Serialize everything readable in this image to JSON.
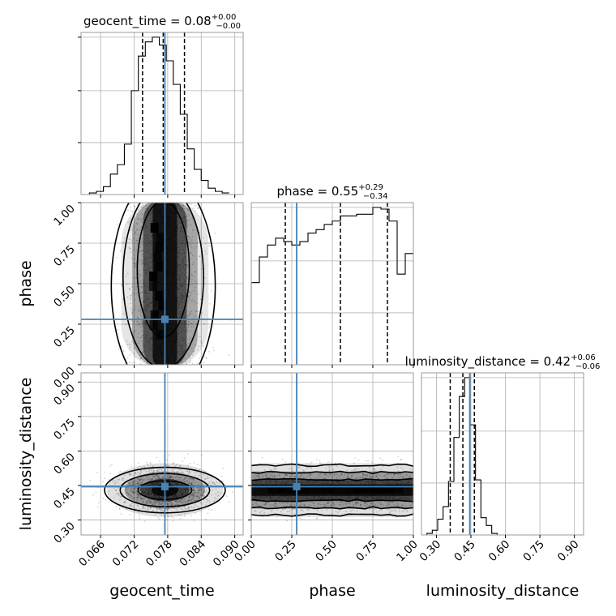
{
  "chart_data": {
    "type": "corner",
    "colors": {
      "truth": "#4682b4",
      "line": "#000000",
      "density": "#000000",
      "grid": "#b0b0b0"
    },
    "parameters": [
      {
        "name": "geocent_time",
        "label": "geocent_time",
        "range": [
          0.0625,
          0.0915
        ],
        "ticks": [
          0.066,
          0.072,
          0.078,
          0.084,
          0.09
        ],
        "tick_labels": [
          "0.066",
          "0.072",
          "0.078",
          "0.084",
          "0.090"
        ],
        "truth": 0.0775,
        "quantiles": [
          0.0735,
          0.0772,
          0.081
        ],
        "title": {
          "main": "geocent_time = 0.08",
          "sup": "+0.00",
          "sub": "−0.00"
        },
        "hist": {
          "edges_start": 0.064,
          "bin_width": 0.00125,
          "counts": [
            1,
            2,
            5,
            13,
            19,
            32,
            66,
            88,
            97,
            100,
            95,
            85,
            70,
            51,
            29,
            16,
            9,
            4,
            2,
            1
          ]
        }
      },
      {
        "name": "phase",
        "label": "phase",
        "range": [
          0.0,
          1.0
        ],
        "ticks": [
          0.0,
          0.25,
          0.5,
          0.75,
          1.0
        ],
        "tick_labels": [
          "0.00",
          "0.25",
          "0.50",
          "0.75",
          "1.00"
        ],
        "truth": 0.28,
        "quantiles": [
          0.21,
          0.55,
          0.84
        ],
        "title": {
          "main": "phase = 0.55",
          "sup": "+0.29",
          "sub": "−0.34"
        },
        "hist": {
          "edges_start": 0.0,
          "bin_width": 0.05,
          "counts": [
            48,
            63,
            70,
            74,
            72,
            70,
            72,
            77,
            79,
            82,
            84,
            87,
            87,
            88,
            88,
            92,
            91,
            84,
            53,
            65
          ]
        }
      },
      {
        "name": "luminosity_distance",
        "label": "luminosity_distance",
        "range": [
          0.235,
          0.94
        ],
        "ticks": [
          0.3,
          0.45,
          0.6,
          0.75,
          0.9
        ],
        "tick_labels": [
          "0.30",
          "0.45",
          "0.60",
          "0.75",
          "0.90"
        ],
        "truth": 0.445,
        "quantiles": [
          0.36,
          0.415,
          0.465
        ],
        "title": {
          "main": "luminosity_distance = 0.42",
          "sup": "+0.06",
          "sub": "−0.06"
        },
        "hist": {
          "edges_start": 0.235,
          "bin_width": 0.0235,
          "counts": [
            0,
            1,
            3,
            10,
            18,
            34,
            62,
            88,
            100,
            70,
            35,
            11,
            6,
            1,
            0,
            0,
            0,
            0,
            0,
            0
          ]
        }
      }
    ],
    "joint": [
      {
        "x": "geocent_time",
        "y": "phase",
        "shape": "vertical",
        "center": [
          0.0775,
          0.62
        ],
        "spread": [
          0.003,
          0.48
        ]
      },
      {
        "x": "geocent_time",
        "y": "luminosity_distance",
        "shape": "blob",
        "center": [
          0.0775,
          0.43
        ],
        "spread": [
          0.004,
          0.045
        ]
      },
      {
        "x": "phase",
        "y": "luminosity_distance",
        "shape": "horizontal",
        "center": [
          0.5,
          0.43
        ],
        "spread": [
          0.5,
          0.045
        ]
      }
    ]
  }
}
